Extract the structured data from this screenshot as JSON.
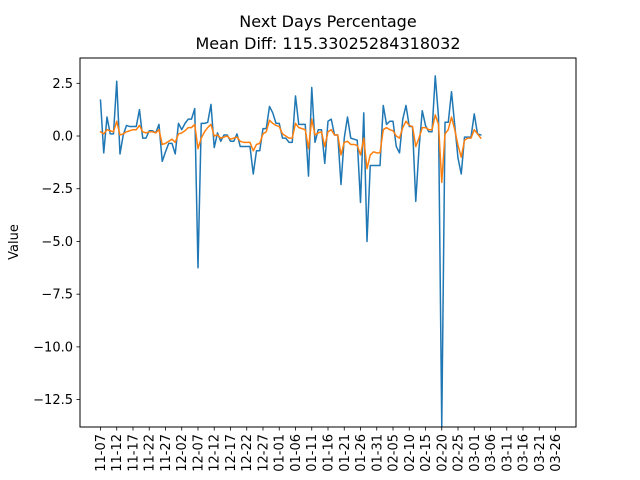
{
  "chart_data": {
    "type": "line",
    "title": "Next Days Percentage",
    "subtitle": "Mean Diff: 115.33025284318032",
    "xlabel": "",
    "ylabel": "Value",
    "ylim": [
      -13.8,
      3.7
    ],
    "yticks": [
      2.5,
      0.0,
      -2.5,
      -5.0,
      -7.5,
      -10.0,
      -12.5
    ],
    "ytick_labels": [
      "2.5",
      "0.0",
      "−2.5",
      "−5.0",
      "−7.5",
      "−10.0",
      "−12.5"
    ],
    "x_start": "2023-11-07",
    "xticks": [
      "2023-11-07",
      "2023-11-12",
      "2023-11-17",
      "2023-11-22",
      "2023-11-27",
      "2023-12-02",
      "2023-12-07",
      "2023-12-12",
      "2023-12-17",
      "2023-12-22",
      "2023-12-27",
      "2024-01-01",
      "2024-01-06",
      "2024-01-11",
      "2024-01-16",
      "2024-01-21",
      "2024-01-26",
      "2024-01-31",
      "2024-02-05",
      "2024-02-10",
      "2024-02-15",
      "2024-02-20",
      "2024-02-25",
      "2024-03-01",
      "2024-03-06",
      "2024-03-11",
      "2024-03-16",
      "2024-03-21",
      "2024-03-26"
    ],
    "xtick_labels": [
      "11-07",
      "11-12",
      "11-17",
      "11-22",
      "11-27",
      "12-02",
      "12-07",
      "12-12",
      "12-17",
      "12-22",
      "12-27",
      "01-01",
      "01-06",
      "01-11",
      "01-16",
      "01-21",
      "01-26",
      "01-31",
      "02-05",
      "02-10",
      "02-15",
      "02-20",
      "02-25",
      "03-01",
      "03-06",
      "03-11",
      "03-16",
      "03-21",
      "03-26"
    ],
    "grid": false,
    "series": [
      {
        "color": "#1f77b4",
        "values": [
          1.7,
          -0.8,
          0.9,
          0.1,
          0.1,
          2.6,
          -0.85,
          0.05,
          0.5,
          0.45,
          0.45,
          0.45,
          1.25,
          -0.1,
          -0.1,
          0.25,
          0.25,
          0.15,
          0.55,
          -1.2,
          -0.75,
          -0.35,
          -0.35,
          -0.85,
          0.6,
          0.3,
          0.6,
          0.8,
          0.8,
          1.3,
          -6.25,
          0.6,
          0.6,
          0.65,
          1.5,
          -0.55,
          0.15,
          -0.25,
          0.05,
          0.05,
          -0.25,
          -0.25,
          0.1,
          -0.5,
          -0.5,
          -0.5,
          -0.5,
          -1.8,
          -0.7,
          -0.7,
          0.35,
          0.35,
          1.4,
          1.1,
          0.6,
          0.6,
          -0.1,
          -0.1,
          -0.3,
          -0.3,
          1.9,
          0.55,
          0.55,
          0.55,
          -1.9,
          2.3,
          -0.3,
          0.3,
          0.3,
          -1.3,
          0.7,
          0.8,
          0.05,
          0.05,
          -2.3,
          -0.1,
          0.9,
          -0.1,
          -0.15,
          -0.2,
          -3.15,
          1.1,
          -5.0,
          -1.4,
          -1.4,
          -1.4,
          -1.4,
          1.45,
          0.55,
          0.7,
          0.7,
          -0.5,
          -0.8,
          0.8,
          1.45,
          0.45,
          0.45,
          -3.1,
          -0.6,
          1.2,
          0.5,
          0.2,
          0.2,
          2.85,
          0.9,
          -13.8,
          0.65,
          0.65,
          2.1,
          0.5,
          -1.05,
          -1.8,
          -0.05,
          -0.05,
          -0.05,
          1.05,
          0.1,
          0.05
        ]
      },
      {
        "color": "#ff7f0e",
        "values": [
          0.2,
          0.1,
          0.3,
          0.25,
          0.2,
          0.7,
          0.05,
          0.1,
          0.2,
          0.25,
          0.3,
          0.3,
          0.5,
          0.2,
          0.15,
          0.2,
          0.2,
          0.15,
          0.3,
          -0.4,
          -0.35,
          -0.25,
          -0.15,
          -0.3,
          0.1,
          0.15,
          0.25,
          0.4,
          0.4,
          0.55,
          -0.6,
          -0.1,
          0.2,
          0.4,
          0.55,
          0.0,
          0.05,
          -0.1,
          -0.05,
          0.0,
          -0.15,
          -0.1,
          -0.05,
          -0.25,
          -0.3,
          -0.3,
          -0.3,
          -0.7,
          -0.4,
          -0.35,
          0.1,
          0.2,
          0.75,
          0.6,
          0.5,
          0.45,
          0.1,
          0.0,
          -0.1,
          -0.1,
          0.6,
          0.4,
          0.35,
          0.3,
          -0.6,
          0.8,
          0.05,
          0.15,
          0.2,
          -0.5,
          0.2,
          0.3,
          0.05,
          0.05,
          -0.9,
          -0.3,
          -0.25,
          -0.4,
          -0.4,
          -0.45,
          -0.9,
          -0.1,
          -1.55,
          -0.9,
          -0.75,
          -0.8,
          -0.8,
          0.3,
          0.4,
          0.3,
          0.25,
          0.0,
          -0.1,
          0.4,
          0.7,
          0.5,
          0.45,
          -0.5,
          -0.1,
          0.4,
          0.4,
          0.3,
          0.3,
          1.0,
          0.55,
          -2.2,
          0.1,
          0.3,
          0.9,
          0.3,
          -0.45,
          -1.0,
          -0.2,
          -0.1,
          -0.1,
          0.3,
          0.1,
          -0.1
        ]
      }
    ]
  }
}
